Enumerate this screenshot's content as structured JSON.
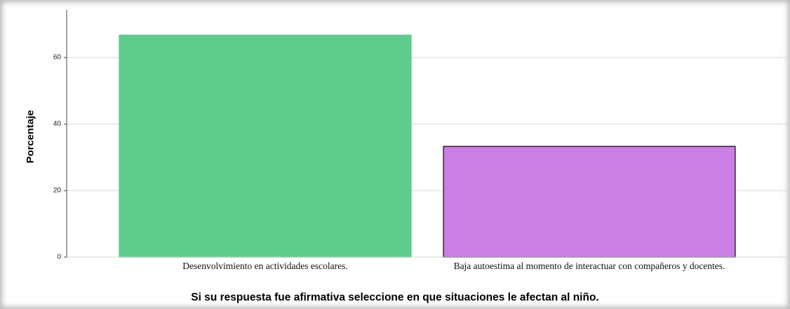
{
  "chart_data": {
    "type": "bar",
    "title": "Si su respuesta fue afirmativa seleccione en que situaciones le afectan al niño.",
    "ylabel": "Porcentaje",
    "categories": [
      "Desenvolvimiento en actividades escolares.",
      "Baja autoestima al momento de interactuar con compañeros y docentes."
    ],
    "values": [
      66.7,
      33.3
    ],
    "colors": [
      "#5fcb8c",
      "#c97fe3"
    ],
    "edge_colors": [
      "#5fcb8c",
      "#3b2340"
    ],
    "ylim": [
      0,
      73.5
    ],
    "yticks": [
      0,
      20,
      40,
      60
    ],
    "grid": true
  }
}
